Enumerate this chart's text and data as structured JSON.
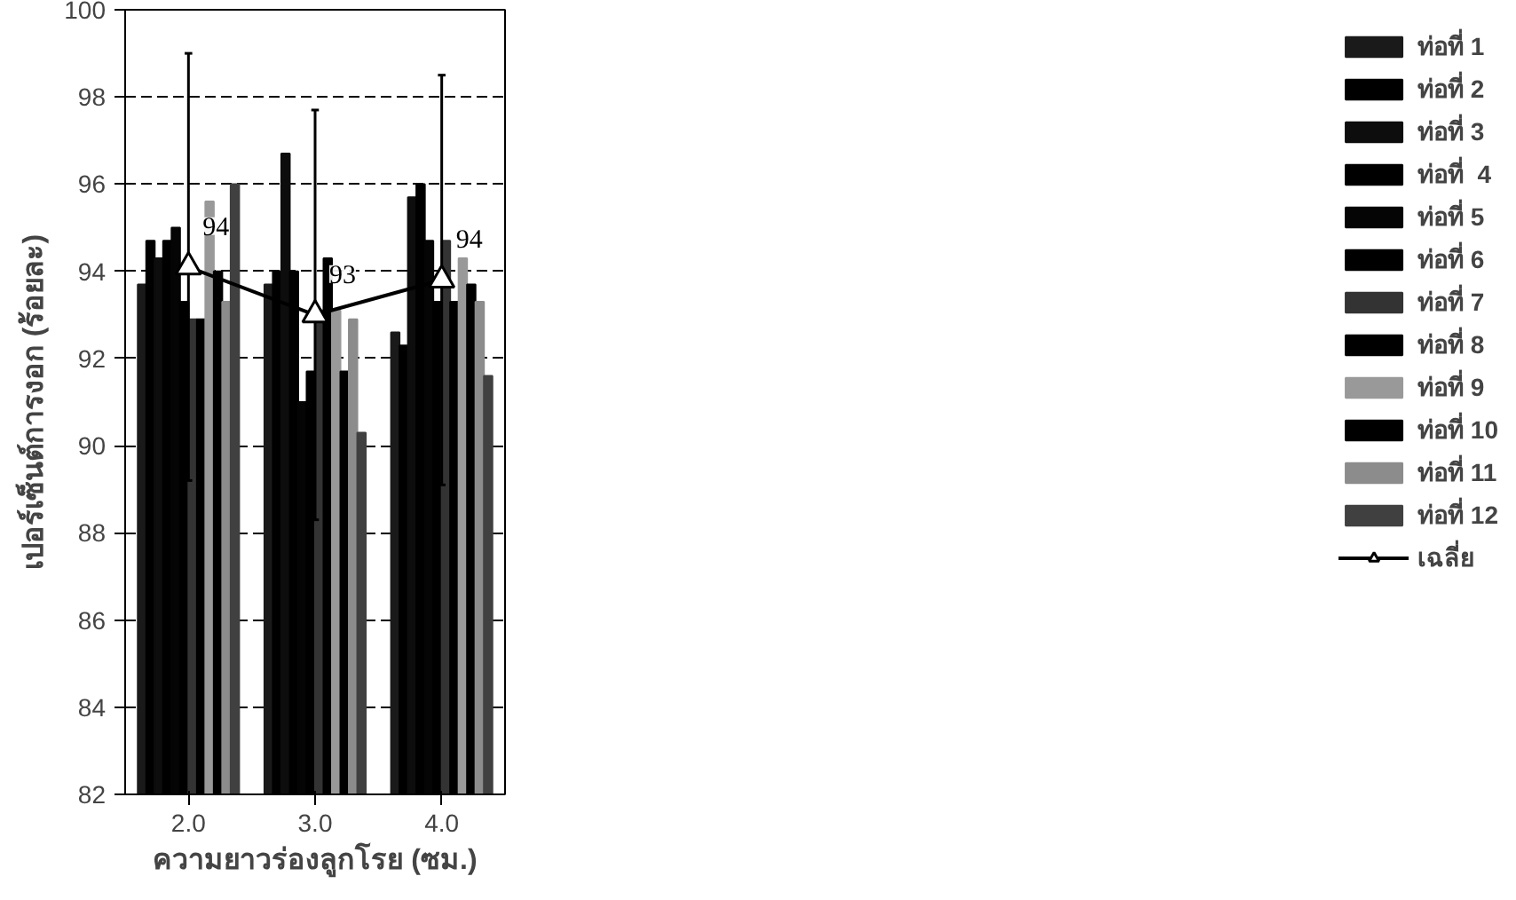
{
  "chart_data": {
    "type": "bar",
    "xlabel": "ความยาวร่องลูกโรย (ซม.)",
    "ylabel": "เปอร์เซ็นต์การงอก (ร้อยละ)",
    "categories": [
      "2.0",
      "3.0",
      "4.0"
    ],
    "ylim": [
      82,
      100
    ],
    "yticks": [
      82,
      84,
      86,
      88,
      90,
      92,
      94,
      96,
      98,
      100
    ],
    "grid": "y",
    "legend": "right",
    "series": [
      {
        "name": "ท่อที่ 1",
        "color": "#1a1a1a",
        "values": [
          93.7,
          93.7,
          92.6
        ]
      },
      {
        "name": "ท่อที่ 2",
        "color": "#000000",
        "values": [
          94.7,
          94.0,
          92.3
        ]
      },
      {
        "name": "ท่อที่ 3",
        "color": "#0d0d0d",
        "values": [
          94.3,
          96.7,
          95.7
        ]
      },
      {
        "name": "ท่อที่  4",
        "color": "#000000",
        "values": [
          94.7,
          94.0,
          96.0
        ]
      },
      {
        "name": "ท่อที่ 5",
        "color": "#050505",
        "values": [
          95.0,
          91.0,
          94.7
        ]
      },
      {
        "name": "ท่อที่ 6",
        "color": "#000000",
        "values": [
          93.3,
          91.7,
          93.3
        ]
      },
      {
        "name": "ท่อที่ 7",
        "color": "#333333",
        "values": [
          92.9,
          93.1,
          94.7
        ]
      },
      {
        "name": "ท่อที่ 8",
        "color": "#000000",
        "values": [
          92.9,
          94.3,
          93.3
        ]
      },
      {
        "name": "ท่อที่ 9",
        "color": "#999999",
        "values": [
          95.6,
          93.1,
          94.3
        ]
      },
      {
        "name": "ท่อที่ 10",
        "color": "#000000",
        "values": [
          94.0,
          91.7,
          93.7
        ]
      },
      {
        "name": "ท่อที่ 11",
        "color": "#8c8c8c",
        "values": [
          93.3,
          92.9,
          93.3
        ]
      },
      {
        "name": "ท่อที่ 12",
        "color": "#404040",
        "values": [
          96.0,
          90.3,
          91.6
        ]
      },
      {
        "name": "เฉลี่ย",
        "type": "line",
        "color": "#000000",
        "marker": "triangle",
        "values": [
          94.1,
          93.0,
          93.8
        ],
        "errors": [
          4.9,
          4.7,
          4.7
        ],
        "value_labels": [
          "94",
          "93",
          "94"
        ]
      }
    ]
  }
}
